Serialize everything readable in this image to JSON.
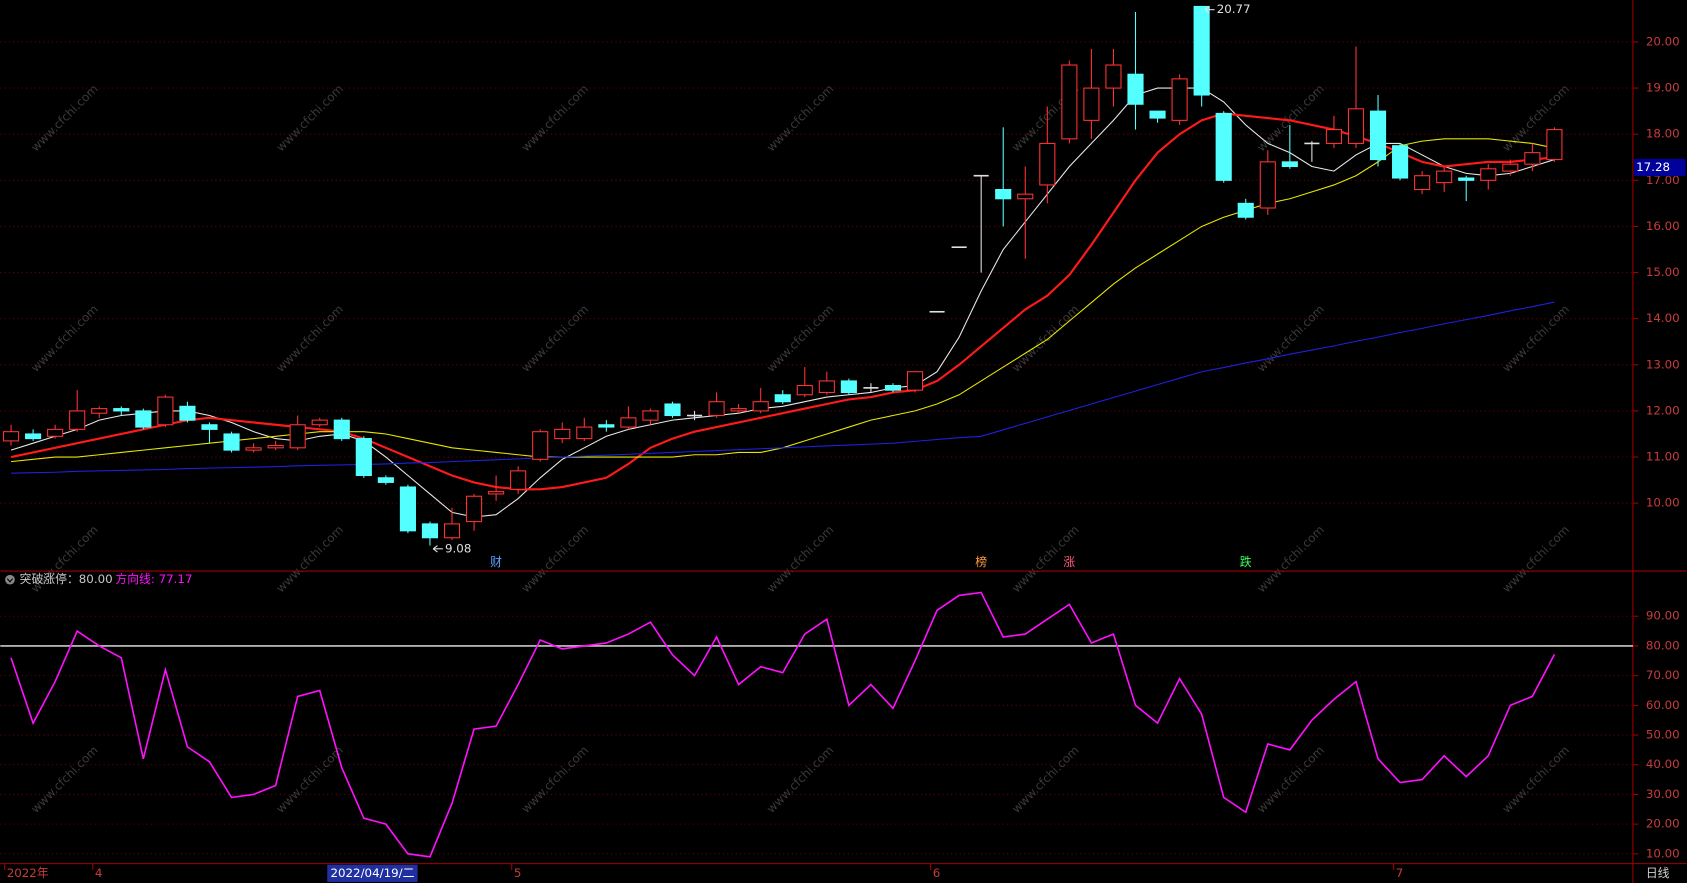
{
  "chart_data": [
    {
      "type": "candlestick",
      "categories": [
        "2022年",
        null,
        null,
        null,
        "4",
        null,
        null,
        null,
        null,
        null,
        null,
        null,
        null,
        null,
        null,
        null,
        null,
        null,
        null,
        null,
        null,
        null,
        null,
        "5",
        null,
        null,
        null,
        null,
        null,
        null,
        null,
        null,
        null,
        null,
        null,
        null,
        null,
        null,
        null,
        null,
        null,
        null,
        "6",
        null,
        null,
        null,
        null,
        null,
        null,
        null,
        null,
        null,
        null,
        null,
        null,
        null,
        null,
        null,
        null,
        null,
        null,
        null,
        null,
        "7",
        null,
        null,
        null,
        null,
        null,
        null,
        null
      ],
      "cursor_date": "2022/04/19/二",
      "period": "日线",
      "open": [
        11.35,
        11.5,
        11.45,
        11.6,
        11.95,
        12.05,
        12.0,
        11.7,
        12.1,
        11.7,
        11.5,
        11.15,
        11.2,
        11.2,
        11.7,
        11.8,
        11.4,
        10.55,
        10.35,
        9.55,
        9.25,
        9.6,
        10.2,
        10.3,
        10.95,
        11.4,
        11.4,
        11.7,
        11.65,
        11.8,
        12.15,
        11.9,
        11.9,
        12.0,
        12.0,
        12.35,
        12.35,
        12.4,
        12.65,
        12.5,
        12.55,
        12.45,
        14.15,
        15.55,
        17.1,
        16.8,
        16.6,
        16.9,
        17.9,
        18.3,
        19.0,
        19.3,
        18.5,
        18.3,
        20.77,
        18.45,
        16.5,
        16.4,
        17.4,
        17.8,
        17.8,
        17.8,
        18.5,
        17.75,
        16.8,
        16.95,
        17.05,
        17.0,
        17.2,
        17.35,
        17.45
      ],
      "high": [
        11.7,
        11.6,
        11.7,
        12.45,
        12.1,
        12.1,
        12.05,
        12.35,
        12.2,
        11.75,
        11.55,
        11.3,
        11.35,
        11.9,
        11.85,
        11.85,
        11.45,
        10.6,
        10.4,
        9.6,
        9.9,
        10.2,
        10.6,
        10.8,
        11.6,
        11.75,
        11.85,
        11.8,
        12.1,
        12.05,
        12.2,
        12.0,
        12.4,
        12.15,
        12.5,
        12.45,
        12.95,
        12.85,
        12.7,
        12.6,
        12.6,
        12.85,
        14.15,
        15.55,
        17.1,
        18.15,
        17.3,
        18.6,
        19.6,
        19.85,
        19.85,
        20.65,
        18.5,
        19.3,
        20.77,
        18.5,
        16.6,
        17.65,
        18.2,
        17.85,
        18.4,
        19.9,
        18.85,
        17.8,
        17.2,
        17.3,
        17.1,
        17.35,
        17.45,
        17.8,
        18.15
      ],
      "low": [
        11.25,
        11.35,
        11.4,
        11.55,
        11.85,
        11.9,
        11.6,
        11.65,
        11.75,
        11.3,
        11.1,
        11.1,
        11.15,
        11.15,
        11.65,
        11.35,
        10.55,
        10.4,
        9.35,
        9.08,
        9.2,
        9.4,
        10.05,
        10.2,
        10.9,
        11.3,
        11.35,
        11.55,
        11.6,
        11.7,
        11.85,
        11.8,
        11.85,
        11.95,
        11.95,
        12.15,
        12.3,
        12.35,
        12.35,
        12.4,
        12.4,
        12.4,
        14.15,
        15.55,
        15.0,
        16.0,
        15.3,
        16.5,
        17.8,
        17.9,
        18.6,
        18.1,
        18.25,
        18.2,
        18.6,
        16.95,
        16.15,
        16.25,
        17.25,
        17.4,
        17.7,
        17.7,
        17.3,
        17.0,
        16.7,
        16.75,
        16.55,
        16.8,
        17.1,
        17.2,
        17.4
      ],
      "close": [
        11.55,
        11.4,
        11.6,
        12.0,
        12.05,
        12.0,
        11.65,
        12.3,
        11.8,
        11.6,
        11.15,
        11.2,
        11.25,
        11.7,
        11.8,
        11.4,
        10.6,
        10.45,
        9.4,
        9.25,
        9.55,
        10.15,
        10.25,
        10.7,
        11.55,
        11.6,
        11.65,
        11.65,
        11.85,
        12.0,
        11.9,
        11.9,
        12.2,
        12.05,
        12.2,
        12.2,
        12.55,
        12.65,
        12.4,
        12.5,
        12.45,
        12.85,
        14.15,
        15.55,
        17.1,
        16.6,
        16.7,
        17.8,
        19.5,
        19.0,
        19.5,
        18.65,
        18.35,
        19.2,
        18.85,
        17.0,
        16.2,
        17.4,
        17.3,
        17.8,
        18.1,
        18.55,
        17.45,
        17.05,
        17.1,
        17.2,
        17.0,
        17.25,
        17.35,
        17.6,
        18.1
      ],
      "up_color": "#ff3232",
      "down_color": "#54ffff",
      "flat_color": "#e0e0e0",
      "series": [
        {
          "color": "#e8e8e8",
          "values": [
            11.15,
            11.3,
            11.45,
            11.6,
            11.8,
            11.9,
            11.95,
            12.0,
            12.0,
            11.9,
            11.75,
            11.55,
            11.4,
            11.35,
            11.45,
            11.5,
            11.35,
            11.0,
            10.6,
            10.2,
            9.8,
            9.7,
            9.75,
            10.1,
            10.55,
            10.95,
            11.2,
            11.45,
            11.6,
            11.7,
            11.8,
            11.85,
            11.9,
            11.95,
            12.05,
            12.1,
            12.2,
            12.3,
            12.35,
            12.4,
            12.5,
            12.55,
            12.85,
            13.6,
            14.6,
            15.5,
            16.1,
            16.7,
            17.3,
            17.8,
            18.3,
            18.85,
            19.0,
            19.0,
            19.0,
            18.7,
            18.2,
            17.8,
            17.6,
            17.3,
            17.2,
            17.55,
            17.8,
            17.8,
            17.55,
            17.3,
            17.15,
            17.1,
            17.15,
            17.3,
            17.45
          ]
        },
        {
          "color": "#ff1a1a",
          "values": [
            11.0,
            11.1,
            11.2,
            11.3,
            11.4,
            11.5,
            11.6,
            11.7,
            11.8,
            11.85,
            11.8,
            11.75,
            11.7,
            11.65,
            11.6,
            11.55,
            11.4,
            11.2,
            11.0,
            10.8,
            10.6,
            10.45,
            10.35,
            10.3,
            10.3,
            10.35,
            10.45,
            10.55,
            10.85,
            11.2,
            11.4,
            11.55,
            11.65,
            11.75,
            11.85,
            11.95,
            12.05,
            12.15,
            12.25,
            12.3,
            12.4,
            12.45,
            12.65,
            13.0,
            13.4,
            13.8,
            14.2,
            14.5,
            14.95,
            15.6,
            16.3,
            17.0,
            17.6,
            18.0,
            18.3,
            18.45,
            18.4,
            18.35,
            18.3,
            18.2,
            18.1,
            17.95,
            17.8,
            17.6,
            17.4,
            17.3,
            17.35,
            17.4,
            17.4,
            17.45,
            17.5
          ]
        },
        {
          "color": "#e6e600",
          "values": [
            10.9,
            10.95,
            11.0,
            11.0,
            11.05,
            11.1,
            11.15,
            11.2,
            11.25,
            11.3,
            11.35,
            11.4,
            11.45,
            11.5,
            11.55,
            11.55,
            11.55,
            11.5,
            11.4,
            11.3,
            11.2,
            11.15,
            11.1,
            11.05,
            11.0,
            11.0,
            11.0,
            11.0,
            11.0,
            11.0,
            11.0,
            11.05,
            11.05,
            11.1,
            11.1,
            11.2,
            11.35,
            11.5,
            11.65,
            11.8,
            11.9,
            12.0,
            12.15,
            12.35,
            12.65,
            12.95,
            13.25,
            13.55,
            13.95,
            14.35,
            14.75,
            15.1,
            15.4,
            15.7,
            16.0,
            16.2,
            16.35,
            16.5,
            16.6,
            16.75,
            16.9,
            17.1,
            17.4,
            17.75,
            17.85,
            17.9,
            17.9,
            17.9,
            17.85,
            17.8,
            17.7
          ]
        },
        {
          "color": "#2020e0",
          "values": [
            10.65,
            10.66,
            10.67,
            10.69,
            10.7,
            10.71,
            10.72,
            10.73,
            10.75,
            10.76,
            10.77,
            10.78,
            10.79,
            10.81,
            10.82,
            10.83,
            10.84,
            10.85,
            10.87,
            10.88,
            10.9,
            10.92,
            10.94,
            10.96,
            10.98,
            11.0,
            11.02,
            11.04,
            11.06,
            11.08,
            11.1,
            11.12,
            11.14,
            11.16,
            11.18,
            11.2,
            11.22,
            11.24,
            11.26,
            11.28,
            11.3,
            11.34,
            11.38,
            11.42,
            11.45,
            11.59,
            11.73,
            11.87,
            12.01,
            12.15,
            12.29,
            12.43,
            12.57,
            12.71,
            12.85,
            12.94,
            13.04,
            13.13,
            13.23,
            13.32,
            13.41,
            13.51,
            13.6,
            13.7,
            13.79,
            13.89,
            13.98,
            14.07,
            14.17,
            14.26,
            14.36
          ]
        }
      ],
      "events": [
        null,
        null,
        null,
        null,
        null,
        null,
        null,
        null,
        null,
        null,
        null,
        null,
        null,
        null,
        null,
        null,
        null,
        null,
        null,
        null,
        null,
        null,
        {
          "label": "财",
          "color": "#5aa0ff"
        },
        null,
        null,
        null,
        null,
        null,
        null,
        null,
        null,
        null,
        null,
        null,
        null,
        null,
        null,
        null,
        null,
        null,
        null,
        null,
        null,
        null,
        {
          "label": "榜",
          "color": "#ff9a3c"
        },
        null,
        null,
        null,
        {
          "label": "涨",
          "color": "#ff5a7a"
        },
        null,
        null,
        null,
        null,
        null,
        null,
        null,
        {
          "label": "跌",
          "color": "#40ff60"
        },
        null,
        null,
        null,
        null,
        null,
        null,
        null,
        null,
        null,
        null,
        null,
        null,
        null,
        null,
        null
      ],
      "extreme_labels": [
        null,
        null,
        null,
        null,
        null,
        null,
        null,
        null,
        null,
        null,
        null,
        null,
        null,
        null,
        null,
        null,
        null,
        null,
        null,
        9.08,
        null,
        null,
        null,
        null,
        null,
        null,
        null,
        null,
        null,
        null,
        null,
        null,
        null,
        null,
        null,
        null,
        null,
        null,
        null,
        null,
        null,
        null,
        null,
        null,
        null,
        null,
        null,
        null,
        null,
        null,
        null,
        null,
        null,
        null,
        20.77,
        null,
        null,
        null,
        null,
        null,
        null,
        null,
        null,
        null,
        null,
        null,
        null,
        null,
        null,
        null,
        null
      ],
      "last_price": 17.28,
      "ylim": [
        8.55,
        20.91
      ],
      "yticks": [
        {
          "value": 10,
          "label": "10.00"
        },
        {
          "value": 11,
          "label": "11.00"
        },
        {
          "value": 12,
          "label": "12.00"
        },
        {
          "value": 13,
          "label": "13.00"
        },
        {
          "value": 14,
          "label": "14.00"
        },
        {
          "value": 15,
          "label": "15.00"
        },
        {
          "value": 16,
          "label": "16.00"
        },
        {
          "value": 17,
          "label": "17.00"
        },
        {
          "value": 18,
          "label": "18.00"
        },
        {
          "value": 19,
          "label": "19.00"
        },
        {
          "value": 20,
          "label": "20.00"
        }
      ],
      "grid": true,
      "watermark": "www.cfchi.com"
    },
    {
      "type": "line",
      "threshold": {
        "value": 80,
        "label": "突破涨停：80.00",
        "color": "#c8c8c8"
      },
      "series": [
        {
          "name": "方向线: 77.17",
          "color": "#ff10ff",
          "values": [
            76,
            54,
            68,
            85,
            80,
            76,
            42,
            72,
            46,
            41,
            29,
            30,
            33,
            63,
            65,
            39,
            22,
            20,
            10,
            9,
            27,
            52,
            53,
            67,
            82,
            79,
            80,
            81,
            84,
            88,
            77,
            70,
            83,
            67,
            73,
            71,
            84,
            89,
            60,
            67,
            59,
            75,
            92,
            97,
            98,
            83,
            84,
            89,
            94,
            81,
            84,
            60,
            54,
            69,
            57,
            29,
            24,
            47,
            45,
            55,
            62,
            68,
            42,
            34,
            35,
            43,
            36,
            43,
            60,
            63,
            77.17
          ]
        }
      ],
      "ylim": [
        6.7,
        105.2
      ],
      "yticks": [
        {
          "value": 10,
          "label": "10.00"
        },
        {
          "value": 20,
          "label": "20.00"
        },
        {
          "value": 30,
          "label": "30.00"
        },
        {
          "value": 40,
          "label": "40.00"
        },
        {
          "value": 50,
          "label": "50.00"
        },
        {
          "value": 60,
          "label": "60.00"
        },
        {
          "value": 70,
          "label": "70.00"
        },
        {
          "value": 80,
          "label": "80.00"
        },
        {
          "value": 90,
          "label": "90.00"
        }
      ],
      "grid": true
    }
  ]
}
